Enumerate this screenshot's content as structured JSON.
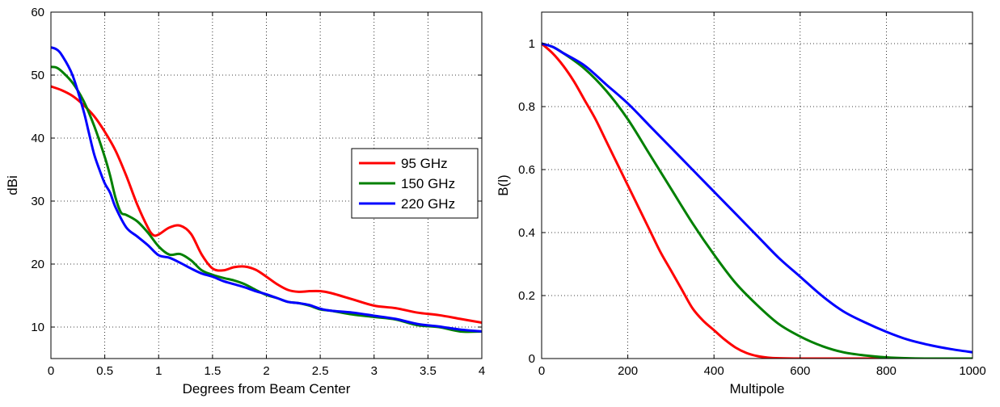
{
  "chart_data": [
    {
      "type": "line",
      "xlabel": "Degrees from Beam Center",
      "ylabel": "dBi",
      "xlim": [
        0,
        4
      ],
      "ylim": [
        5,
        60
      ],
      "xticks": [
        0,
        0.5,
        1,
        1.5,
        2,
        2.5,
        3,
        3.5,
        4
      ],
      "xtick_labels": [
        "0",
        "0.5",
        "1",
        "1.5",
        "2",
        "2.5",
        "3",
        "3.5",
        "4"
      ],
      "yticks": [
        10,
        20,
        30,
        40,
        50,
        60
      ],
      "ytick_labels": [
        "10",
        "20",
        "30",
        "40",
        "50",
        "60"
      ],
      "grid": true,
      "legend": "center-right",
      "series": [
        {
          "name": "95 GHz",
          "color": "#ff0000",
          "x": [
            0,
            0.1,
            0.2,
            0.3,
            0.4,
            0.5,
            0.6,
            0.7,
            0.8,
            0.9,
            0.95,
            1.0,
            1.1,
            1.2,
            1.3,
            1.4,
            1.5,
            1.6,
            1.7,
            1.8,
            1.9,
            2.0,
            2.1,
            2.2,
            2.3,
            2.4,
            2.5,
            2.6,
            2.8,
            3.0,
            3.2,
            3.4,
            3.6,
            3.8,
            4.0
          ],
          "y": [
            48.2,
            47.6,
            46.7,
            45.3,
            43.5,
            41.0,
            38.0,
            34.0,
            29.5,
            25.8,
            24.6,
            24.7,
            25.8,
            26.1,
            24.8,
            21.5,
            19.3,
            19.0,
            19.5,
            19.6,
            19.1,
            18.0,
            16.8,
            15.9,
            15.6,
            15.7,
            15.7,
            15.4,
            14.4,
            13.4,
            13.0,
            12.3,
            11.9,
            11.3,
            10.7
          ]
        },
        {
          "name": "150 GHz",
          "color": "#008000",
          "x": [
            0,
            0.05,
            0.1,
            0.2,
            0.3,
            0.4,
            0.5,
            0.55,
            0.6,
            0.65,
            0.7,
            0.8,
            0.9,
            1.0,
            1.1,
            1.2,
            1.3,
            1.4,
            1.5,
            1.6,
            1.7,
            1.8,
            1.9,
            2.0,
            2.1,
            2.2,
            2.3,
            2.4,
            2.5,
            2.6,
            2.8,
            3.0,
            3.2,
            3.4,
            3.6,
            3.8,
            4.0
          ],
          "y": [
            51.3,
            51.2,
            50.6,
            48.8,
            46.0,
            42.0,
            37.0,
            34.0,
            30.5,
            28.2,
            27.8,
            26.8,
            25.0,
            22.8,
            21.5,
            21.6,
            20.6,
            19.0,
            18.3,
            17.8,
            17.4,
            16.8,
            15.9,
            15.1,
            14.6,
            14.0,
            13.8,
            13.4,
            12.8,
            12.6,
            12.0,
            11.6,
            11.2,
            10.3,
            10.0,
            9.3,
            9.3
          ]
        },
        {
          "name": "220 GHz",
          "color": "#0000ff",
          "x": [
            0,
            0.05,
            0.1,
            0.2,
            0.3,
            0.35,
            0.4,
            0.45,
            0.5,
            0.55,
            0.6,
            0.7,
            0.8,
            0.9,
            1.0,
            1.1,
            1.2,
            1.3,
            1.4,
            1.5,
            1.6,
            1.7,
            1.8,
            1.9,
            2.0,
            2.1,
            2.2,
            2.3,
            2.4,
            2.5,
            2.6,
            2.8,
            3.0,
            3.2,
            3.4,
            3.6,
            3.8,
            4.0
          ],
          "y": [
            54.4,
            54.1,
            53.2,
            50.0,
            44.5,
            41.0,
            37.5,
            35.0,
            32.8,
            31.3,
            29.0,
            25.8,
            24.4,
            23.0,
            21.4,
            21.0,
            20.2,
            19.3,
            18.5,
            18.0,
            17.3,
            16.8,
            16.3,
            15.7,
            15.2,
            14.6,
            14.0,
            13.8,
            13.5,
            12.9,
            12.6,
            12.3,
            11.8,
            11.3,
            10.5,
            10.1,
            9.6,
            9.3
          ]
        }
      ]
    },
    {
      "type": "line",
      "xlabel": "Multipole",
      "ylabel": "B(l)",
      "xlim": [
        0,
        1000
      ],
      "ylim": [
        0,
        1.1
      ],
      "xticks": [
        0,
        200,
        400,
        600,
        800,
        1000
      ],
      "xtick_labels": [
        "0",
        "200",
        "400",
        "600",
        "800",
        "1000"
      ],
      "yticks": [
        0,
        0.2,
        0.4,
        0.6,
        0.8,
        1
      ],
      "ytick_labels": [
        "0",
        "0.2",
        "0.4",
        "0.6",
        "0.8",
        "1"
      ],
      "grid": true,
      "series": [
        {
          "name": "95 GHz",
          "color": "#ff0000",
          "x": [
            0,
            25,
            50,
            75,
            100,
            125,
            150,
            175,
            200,
            225,
            250,
            275,
            300,
            325,
            350,
            375,
            400,
            425,
            450,
            475,
            500,
            525,
            550,
            600,
            700,
            800,
            1000
          ],
          "y": [
            1.0,
            0.97,
            0.93,
            0.88,
            0.82,
            0.76,
            0.69,
            0.62,
            0.55,
            0.48,
            0.41,
            0.34,
            0.28,
            0.22,
            0.16,
            0.12,
            0.09,
            0.06,
            0.035,
            0.018,
            0.008,
            0.003,
            0.001,
            0,
            0,
            0,
            0
          ]
        },
        {
          "name": "150 GHz",
          "color": "#008000",
          "x": [
            0,
            25,
            50,
            100,
            150,
            200,
            250,
            300,
            350,
            400,
            450,
            500,
            550,
            600,
            650,
            700,
            750,
            800,
            850,
            900,
            1000
          ],
          "y": [
            1.0,
            0.99,
            0.97,
            0.92,
            0.85,
            0.76,
            0.65,
            0.54,
            0.43,
            0.33,
            0.24,
            0.17,
            0.11,
            0.07,
            0.04,
            0.02,
            0.01,
            0.004,
            0.001,
            0,
            0
          ]
        },
        {
          "name": "220 GHz",
          "color": "#0000ff",
          "x": [
            0,
            25,
            50,
            100,
            150,
            200,
            250,
            300,
            350,
            400,
            450,
            500,
            550,
            600,
            650,
            700,
            750,
            800,
            850,
            900,
            950,
            1000
          ],
          "y": [
            1.0,
            0.99,
            0.97,
            0.93,
            0.87,
            0.81,
            0.74,
            0.67,
            0.6,
            0.53,
            0.46,
            0.39,
            0.32,
            0.26,
            0.2,
            0.15,
            0.115,
            0.085,
            0.06,
            0.043,
            0.03,
            0.02
          ]
        }
      ]
    }
  ]
}
